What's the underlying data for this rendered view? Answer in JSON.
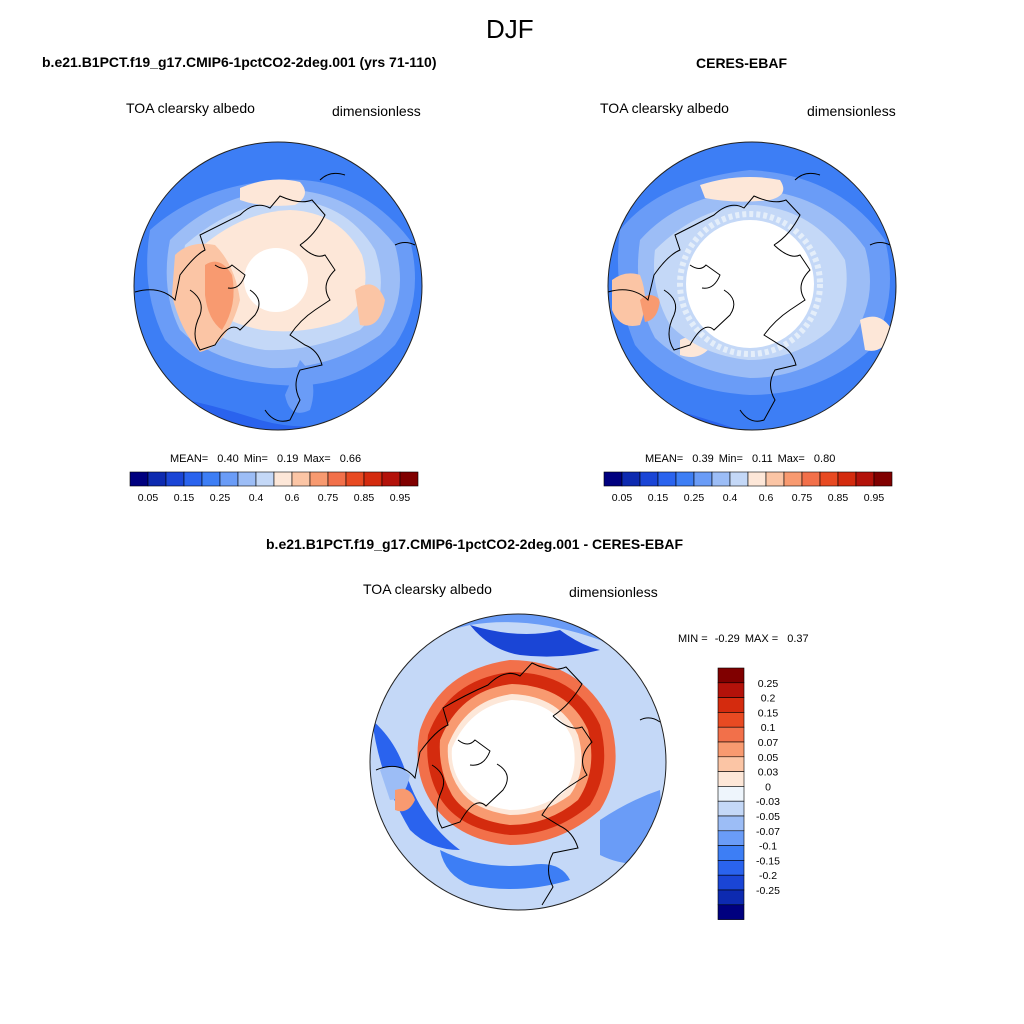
{
  "figure": {
    "season_title": "DJF",
    "colors": {
      "blue_scale": [
        "#00007f",
        "#0d2ab0",
        "#1a45d6",
        "#2a63ee",
        "#3d7ef5",
        "#6a9cf7",
        "#9cbdf6",
        "#c4d8f7",
        "#e4eefa"
      ],
      "warm_scale": [
        "#fde7d8",
        "#fbc5a5",
        "#f89a70",
        "#f2704a",
        "#e84a22",
        "#d42b0e",
        "#b3120a",
        "#800000"
      ],
      "zero_color": "#eef5fc"
    }
  },
  "panels": {
    "model": {
      "title": "b.e21.B1PCT.f19_g17.CMIP6-1pctCO2-2deg.001 (yrs 71-110)",
      "variable": "TOA clearsky albedo",
      "units": "dimensionless",
      "stats": {
        "mean_label": "MEAN=",
        "mean": "0.40",
        "min_label": "Min=",
        "min": "0.19",
        "max_label": "Max=",
        "max": "0.66"
      }
    },
    "obs": {
      "title": "CERES-EBAF",
      "variable": "TOA clearsky albedo",
      "units": "dimensionless",
      "stats": {
        "mean_label": "MEAN=",
        "mean": "0.39",
        "min_label": "Min=",
        "min": "0.11",
        "max_label": "Max=",
        "max": "0.80"
      }
    },
    "diff": {
      "title": "b.e21.B1PCT.f19_g17.CMIP6-1pctCO2-2deg.001 - CERES-EBAF",
      "variable": "TOA clearsky albedo",
      "units": "dimensionless",
      "minmax": {
        "min_label": "MIN =",
        "min": "-0.29",
        "max_label": "MAX =",
        "max": "0.37"
      }
    }
  },
  "colorbars": {
    "abs_ticks": [
      "0.05",
      "0.15",
      "0.25",
      "0.4",
      "0.6",
      "0.75",
      "0.85",
      "0.95"
    ],
    "diff_ticks": [
      "0.25",
      "0.2",
      "0.15",
      "0.1",
      "0.07",
      "0.05",
      "0.03",
      "0",
      "-0.03",
      "-0.05",
      "-0.07",
      "-0.1",
      "-0.15",
      "-0.2",
      "-0.25"
    ]
  }
}
